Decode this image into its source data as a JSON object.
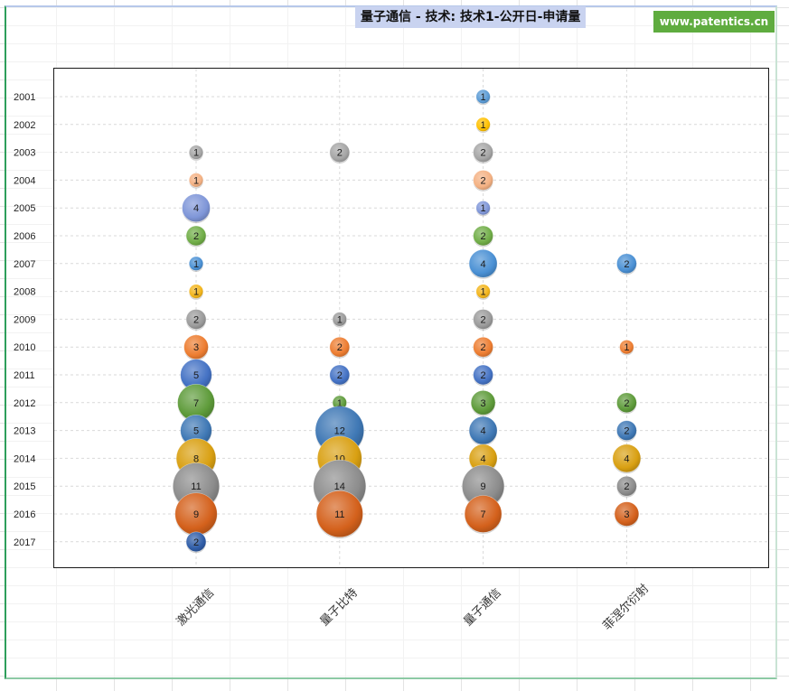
{
  "title": "量子通信 - 技术: 技术1-公开日-申请量",
  "brand": "www.patentics.cn",
  "chart_data": {
    "type": "bubble",
    "title": "量子通信 - 技术: 技术1-公开日-申请量",
    "categories": [
      "激光通信",
      "量子比特",
      "量子通信",
      "菲涅尔衍射"
    ],
    "years": [
      "2001",
      "2002",
      "2003",
      "2004",
      "2005",
      "2006",
      "2007",
      "2008",
      "2009",
      "2010",
      "2011",
      "2012",
      "2013",
      "2014",
      "2015",
      "2016",
      "2017"
    ],
    "year_colors": {
      "2001": "#5b9bd5",
      "2002": "#ffc000",
      "2003": "#a5a5a5",
      "2004": "#f4b183",
      "2005": "#7f96d8",
      "2006": "#70ad47",
      "2007": "#4a90d4",
      "2008": "#f3b51b",
      "2009": "#9b9b9b",
      "2010": "#ed7d31",
      "2011": "#4472c4",
      "2012": "#5e9b3a",
      "2013": "#3f78b5",
      "2014": "#d9a012",
      "2015": "#8c8c8c",
      "2016": "#d4611c",
      "2017": "#2f5da8"
    },
    "points": [
      {
        "category": "激光通信",
        "year": "2003",
        "value": 1
      },
      {
        "category": "激光通信",
        "year": "2004",
        "value": 1
      },
      {
        "category": "激光通信",
        "year": "2005",
        "value": 4
      },
      {
        "category": "激光通信",
        "year": "2006",
        "value": 2
      },
      {
        "category": "激光通信",
        "year": "2007",
        "value": 1
      },
      {
        "category": "激光通信",
        "year": "2008",
        "value": 1
      },
      {
        "category": "激光通信",
        "year": "2009",
        "value": 2
      },
      {
        "category": "激光通信",
        "year": "2010",
        "value": 3
      },
      {
        "category": "激光通信",
        "year": "2011",
        "value": 5
      },
      {
        "category": "激光通信",
        "year": "2012",
        "value": 7
      },
      {
        "category": "激光通信",
        "year": "2013",
        "value": 5
      },
      {
        "category": "激光通信",
        "year": "2014",
        "value": 8
      },
      {
        "category": "激光通信",
        "year": "2015",
        "value": 11
      },
      {
        "category": "激光通信",
        "year": "2016",
        "value": 9
      },
      {
        "category": "激光通信",
        "year": "2017",
        "value": 2
      },
      {
        "category": "量子比特",
        "year": "2003",
        "value": 2
      },
      {
        "category": "量子比特",
        "year": "2009",
        "value": 1
      },
      {
        "category": "量子比特",
        "year": "2010",
        "value": 2
      },
      {
        "category": "量子比特",
        "year": "2011",
        "value": 2
      },
      {
        "category": "量子比特",
        "year": "2012",
        "value": 1
      },
      {
        "category": "量子比特",
        "year": "2013",
        "value": 12
      },
      {
        "category": "量子比特",
        "year": "2014",
        "value": 10
      },
      {
        "category": "量子比特",
        "year": "2015",
        "value": 14
      },
      {
        "category": "量子比特",
        "year": "2016",
        "value": 11
      },
      {
        "category": "量子通信",
        "year": "2001",
        "value": 1
      },
      {
        "category": "量子通信",
        "year": "2002",
        "value": 1
      },
      {
        "category": "量子通信",
        "year": "2003",
        "value": 2
      },
      {
        "category": "量子通信",
        "year": "2004",
        "value": 2
      },
      {
        "category": "量子通信",
        "year": "2005",
        "value": 1
      },
      {
        "category": "量子通信",
        "year": "2006",
        "value": 2
      },
      {
        "category": "量子通信",
        "year": "2007",
        "value": 4
      },
      {
        "category": "量子通信",
        "year": "2008",
        "value": 1
      },
      {
        "category": "量子通信",
        "year": "2009",
        "value": 2
      },
      {
        "category": "量子通信",
        "year": "2010",
        "value": 2
      },
      {
        "category": "量子通信",
        "year": "2011",
        "value": 2
      },
      {
        "category": "量子通信",
        "year": "2012",
        "value": 3
      },
      {
        "category": "量子通信",
        "year": "2013",
        "value": 4
      },
      {
        "category": "量子通信",
        "year": "2014",
        "value": 4
      },
      {
        "category": "量子通信",
        "year": "2015",
        "value": 9
      },
      {
        "category": "量子通信",
        "year": "2016",
        "value": 7
      },
      {
        "category": "菲涅尔衍射",
        "year": "2007",
        "value": 2
      },
      {
        "category": "菲涅尔衍射",
        "year": "2010",
        "value": 1
      },
      {
        "category": "菲涅尔衍射",
        "year": "2012",
        "value": 2
      },
      {
        "category": "菲涅尔衍射",
        "year": "2013",
        "value": 2
      },
      {
        "category": "菲涅尔衍射",
        "year": "2014",
        "value": 4
      },
      {
        "category": "菲涅尔衍射",
        "year": "2015",
        "value": 2
      },
      {
        "category": "菲涅尔衍射",
        "year": "2016",
        "value": 3
      }
    ],
    "xlabel": "",
    "ylabel": "",
    "grid": true,
    "legend": "none"
  }
}
